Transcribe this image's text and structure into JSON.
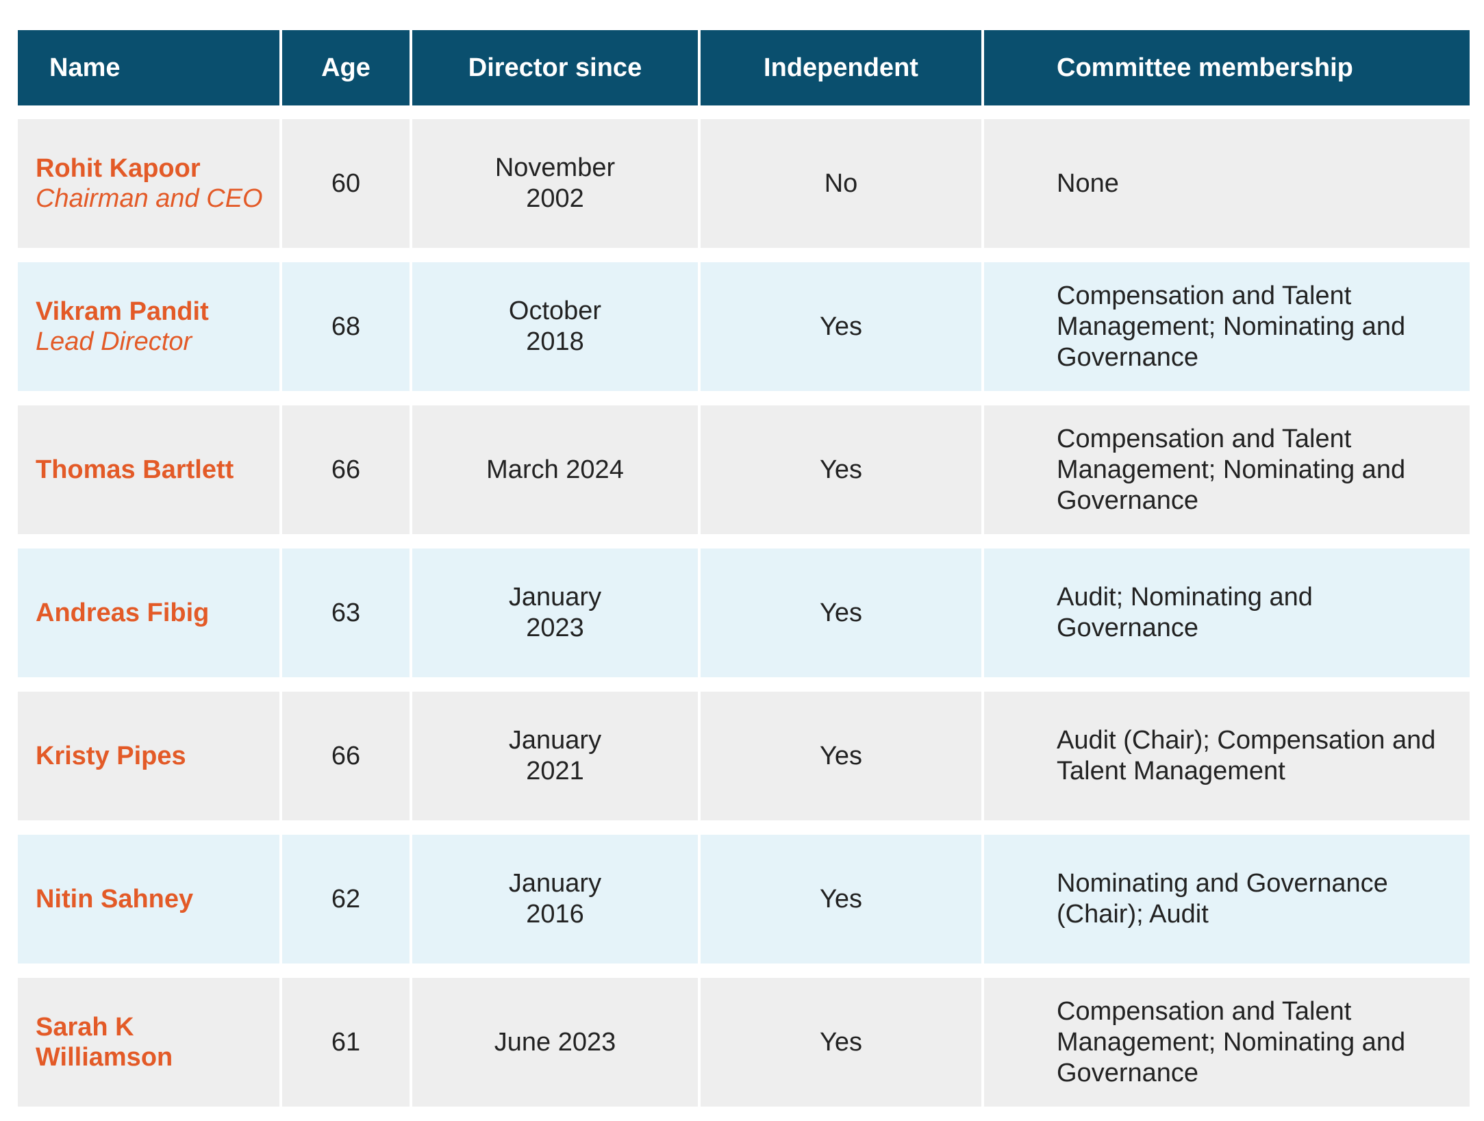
{
  "headers": {
    "name": "Name",
    "age": "Age",
    "director_since": "Director since",
    "independent": "Independent",
    "committee": "Committee membership"
  },
  "colors": {
    "header_bg": "#0a4f6e",
    "name_accent": "#e35a27",
    "row_gray": "#eeeeee",
    "row_blue": "#e5f3f9"
  },
  "rows": [
    {
      "name": "Rohit Kapoor",
      "title": "Chairman and CEO",
      "age": "60",
      "director_since": "November 2002",
      "independent": "No",
      "committee": "None"
    },
    {
      "name": "Vikram Pandit",
      "title": "Lead Director",
      "age": "68",
      "director_since": "October 2018",
      "independent": "Yes",
      "committee": "Compensation and Talent Management; Nominating and Governance"
    },
    {
      "name": "Thomas Bartlett",
      "title": "",
      "age": "66",
      "director_since": "March 2024",
      "independent": "Yes",
      "committee": "Compensation and Talent Management; Nominating and Governance"
    },
    {
      "name": "Andreas Fibig",
      "title": "",
      "age": "63",
      "director_since": "January 2023",
      "independent": "Yes",
      "committee": "Audit; Nominating and Governance"
    },
    {
      "name": "Kristy Pipes",
      "title": "",
      "age": "66",
      "director_since": "January 2021",
      "independent": "Yes",
      "committee": "Audit (Chair); Compensation and Talent Management"
    },
    {
      "name": "Nitin Sahney",
      "title": "",
      "age": "62",
      "director_since": "January 2016",
      "independent": "Yes",
      "committee": "Nominating and Governance (Chair); Audit"
    },
    {
      "name": "Sarah K Williamson",
      "title": "",
      "age": "61",
      "director_since": "June 2023",
      "independent": "Yes",
      "committee": "Compensation and Talent Management; Nominating and Governance"
    }
  ]
}
